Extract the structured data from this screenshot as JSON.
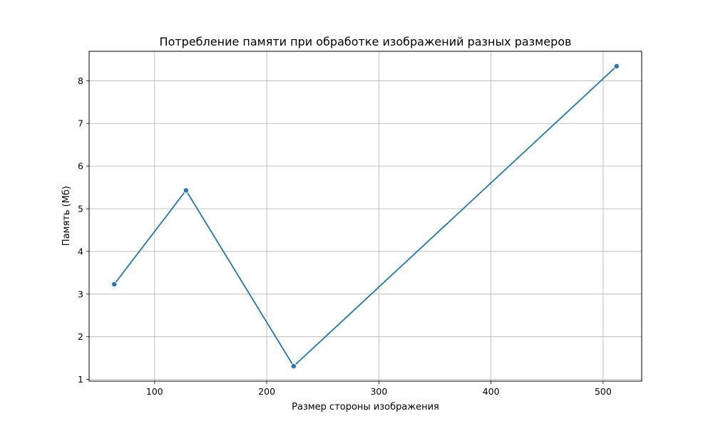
{
  "chart_data": {
    "type": "line",
    "title": "Потребление памяти при обработке изображений разных размеров",
    "xlabel": "Размер стороны изображения",
    "ylabel": "Память (Мб)",
    "x": [
      64,
      128,
      224,
      512
    ],
    "series": [
      {
        "values": [
          3.23,
          5.43,
          1.31,
          8.34
        ],
        "color": "#1f77b4",
        "marker": "circle"
      }
    ],
    "xlim": [
      41.6,
      534.4
    ],
    "ylim": [
      0.96,
      8.69
    ],
    "xticks": [
      100,
      200,
      300,
      400,
      500
    ],
    "yticks": [
      1,
      2,
      3,
      4,
      5,
      6,
      7,
      8
    ],
    "grid": true,
    "legend": "none"
  }
}
